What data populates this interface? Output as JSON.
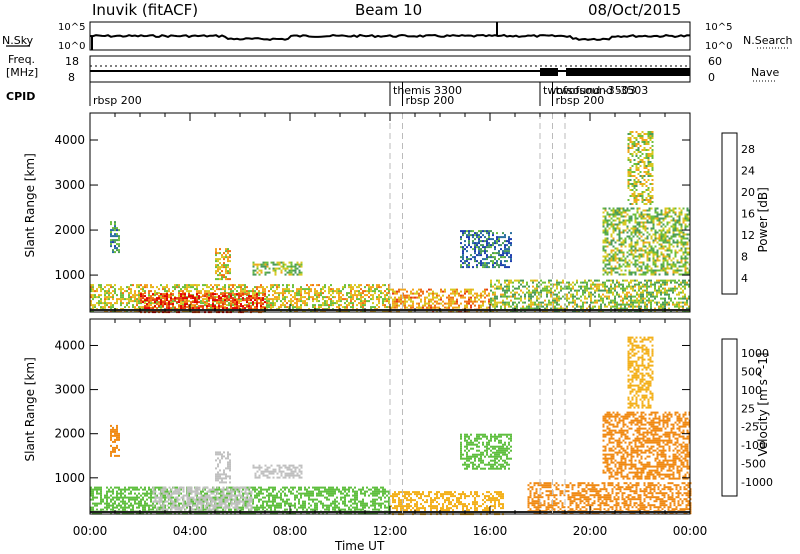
{
  "header": {
    "station": "Inuvik (fitACF)",
    "beam": "Beam 10",
    "date": "08/Oct/2015"
  },
  "top_panels": {
    "nsky_label": "N.Sky",
    "nsearch_label": "N.Search",
    "freq_label_line1": "Freq.",
    "freq_label_line2": "[MHz]",
    "nave_label": "Nave",
    "cpid_label": "CPID",
    "nsky_ticks": [
      "10^5",
      "10^0"
    ],
    "nsearch_ticks": [
      "10^5",
      "10^0"
    ],
    "freq_ticks": [
      "18",
      "8"
    ],
    "nave_ticks": [
      "60",
      "0"
    ]
  },
  "cpid_entries": [
    {
      "name": "rbsp 200",
      "time_h": 0.0,
      "row": 2
    },
    {
      "name": "themis 3300",
      "time_h": 12.0,
      "row": 1
    },
    {
      "name": "rbsp 200",
      "time_h": 12.5,
      "row": 2
    },
    {
      "name": "twofsound -3503",
      "time_h": 18.0,
      "row": 1
    },
    {
      "name": "twofsound -3503",
      "time_h": 18.5,
      "row": 1
    },
    {
      "name": "rbsp 200",
      "time_h": 18.5,
      "row": 2
    }
  ],
  "chart_data": [
    {
      "type": "heatmap",
      "title": "Power",
      "ylabel": "Slant Range [km]",
      "xlabel": "Time UT",
      "x_ticks": [
        "00:00",
        "04:00",
        "08:00",
        "12:00",
        "16:00",
        "20:00",
        "00:00"
      ],
      "xlim_hours": [
        0,
        24
      ],
      "ylim": [
        180,
        4600
      ],
      "y_ticks": [
        1000,
        2000,
        3000,
        4000
      ],
      "colorbar": {
        "label": "Power [dB]",
        "ticks": [
          "28",
          "24",
          "20",
          "16",
          "12",
          "8",
          "4"
        ],
        "range": [
          0,
          30
        ],
        "colors": [
          "#1a1aff",
          "#1e3fae",
          "#2a6fa0",
          "#4a9a5a",
          "#6cbf3a",
          "#d8c820",
          "#f3a51a",
          "#f07014",
          "#e63a12",
          "#e00000"
        ]
      },
      "patches": [
        {
          "t0": 0.0,
          "t1": 12.0,
          "r0": 200,
          "r1": 800,
          "v": 17
        },
        {
          "t0": 2.0,
          "t1": 7.0,
          "r0": 200,
          "r1": 600,
          "v": 26
        },
        {
          "t0": 0.8,
          "t1": 1.2,
          "r0": 1500,
          "r1": 2200,
          "v": 10
        },
        {
          "t0": 5.0,
          "t1": 5.6,
          "r0": 900,
          "r1": 1600,
          "v": 18
        },
        {
          "t0": 6.5,
          "t1": 8.5,
          "r0": 1000,
          "r1": 1300,
          "v": 14
        },
        {
          "t0": 12.0,
          "t1": 16.0,
          "r0": 200,
          "r1": 700,
          "v": 20
        },
        {
          "t0": 14.8,
          "t1": 16.8,
          "r0": 1200,
          "r1": 2000,
          "v": 8
        },
        {
          "t0": 16.0,
          "t1": 24.0,
          "r0": 200,
          "r1": 900,
          "v": 14
        },
        {
          "t0": 20.5,
          "t1": 24.0,
          "r0": 1000,
          "r1": 2500,
          "v": 14
        },
        {
          "t0": 21.5,
          "t1": 22.5,
          "r0": 2600,
          "r1": 4200,
          "v": 16
        }
      ]
    },
    {
      "type": "heatmap",
      "title": "Velocity",
      "ylabel": "Slant Range [km]",
      "xlabel": "Time UT",
      "x_ticks": [
        "00:00",
        "04:00",
        "08:00",
        "12:00",
        "16:00",
        "20:00",
        "00:00"
      ],
      "xlim_hours": [
        0,
        24
      ],
      "ylim": [
        180,
        4600
      ],
      "y_ticks": [
        1000,
        2000,
        3000,
        4000
      ],
      "colorbar": {
        "label": "Velocity [m s^-1]",
        "ticks": [
          "1000",
          "500",
          "100",
          "25",
          "-25",
          "-100",
          "-500",
          "-1000"
        ],
        "colors": [
          "#1f3fbf",
          "#2f6f9f",
          "#3f8f5f",
          "#5fbf3f",
          "#c0c0c0",
          "#f3b01a",
          "#f08a14",
          "#e8601a",
          "#e00000"
        ]
      },
      "patches": [
        {
          "t0": 0.0,
          "t1": 12.0,
          "r0": 200,
          "r1": 800,
          "v": "green"
        },
        {
          "t0": 2.5,
          "t1": 6.5,
          "r0": 300,
          "r1": 800,
          "v": "gray"
        },
        {
          "t0": 0.8,
          "t1": 1.2,
          "r0": 1500,
          "r1": 2200,
          "v": "orange"
        },
        {
          "t0": 5.0,
          "t1": 5.6,
          "r0": 900,
          "r1": 1600,
          "v": "gray"
        },
        {
          "t0": 6.5,
          "t1": 8.5,
          "r0": 1000,
          "r1": 1300,
          "v": "gray"
        },
        {
          "t0": 12.0,
          "t1": 16.5,
          "r0": 200,
          "r1": 700,
          "v": "yellow"
        },
        {
          "t0": 14.8,
          "t1": 16.8,
          "r0": 1200,
          "r1": 2000,
          "v": "green"
        },
        {
          "t0": 17.5,
          "t1": 24.0,
          "r0": 200,
          "r1": 900,
          "v": "orange"
        },
        {
          "t0": 20.5,
          "t1": 24.0,
          "r0": 1000,
          "r1": 2500,
          "v": "orange"
        },
        {
          "t0": 21.5,
          "t1": 22.5,
          "r0": 2600,
          "r1": 4200,
          "v": "yellow"
        }
      ]
    }
  ]
}
